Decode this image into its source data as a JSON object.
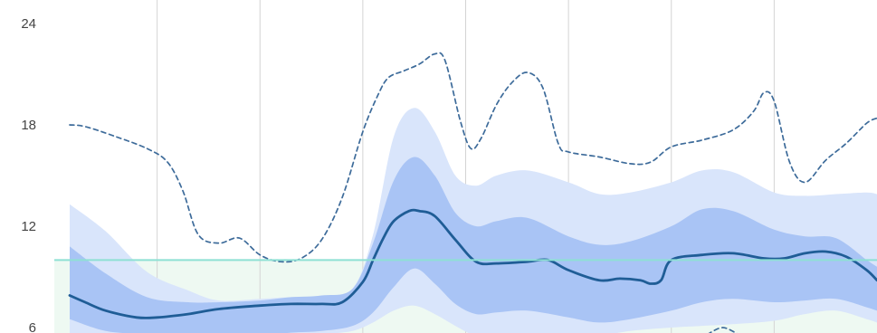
{
  "chart_data": {
    "type": "area",
    "title": "",
    "xlabel": "",
    "ylabel": "",
    "ylim": [
      6,
      24.6
    ],
    "xlim": [
      0,
      8
    ],
    "y_ticks": [
      "6",
      "12",
      "18",
      "24"
    ],
    "x_ticks": [],
    "grid": {
      "vertical": true,
      "horizontal": false
    },
    "target_line": {
      "y": 10.0,
      "color": "#8ee0d4"
    },
    "target_fill_color": "#eef9f2",
    "colors": {
      "outer_band": "#d9e5fb",
      "inner_band": "#a9c4f5",
      "median": "#1f5d96",
      "upper_dashed": "#3d6b9a",
      "grid": "#d4d4d4"
    },
    "series": [
      {
        "key": "outer_band",
        "style": "band",
        "x": [
          0.15,
          0.5,
          0.9,
          1.3,
          1.6,
          2.0,
          2.3,
          2.6,
          2.9,
          3.1,
          3.3,
          3.5,
          3.7,
          3.9,
          4.1,
          4.3,
          4.6,
          5.0,
          5.3,
          5.6,
          6.0,
          6.3,
          6.6,
          7.0,
          7.3,
          7.6,
          7.9,
          8.0
        ],
        "upper": [
          13.3,
          11.7,
          9.3,
          8.2,
          7.6,
          7.7,
          7.8,
          7.8,
          8.3,
          11.5,
          17.3,
          19.0,
          17.6,
          15.0,
          14.4,
          15.0,
          15.3,
          14.6,
          13.9,
          14.0,
          14.6,
          15.3,
          15.2,
          14.0,
          13.8,
          13.9,
          14.0,
          13.9
        ],
        "lower": [
          5.6,
          5.3,
          5.2,
          5.2,
          5.2,
          5.3,
          5.5,
          5.6,
          5.8,
          6.3,
          7.0,
          7.3,
          6.8,
          6.1,
          5.5,
          5.4,
          5.3,
          5.4,
          5.5,
          5.8,
          6.0,
          6.1,
          6.2,
          6.4,
          6.8,
          7.0,
          6.5,
          6.3
        ]
      },
      {
        "key": "inner_band",
        "style": "band",
        "x": [
          0.15,
          0.5,
          0.9,
          1.3,
          1.6,
          2.0,
          2.3,
          2.6,
          2.9,
          3.1,
          3.3,
          3.5,
          3.7,
          3.9,
          4.1,
          4.3,
          4.6,
          5.0,
          5.3,
          5.6,
          6.0,
          6.3,
          6.6,
          7.0,
          7.3,
          7.6,
          7.9,
          8.0
        ],
        "upper": [
          10.8,
          9.2,
          7.8,
          7.5,
          7.5,
          7.6,
          7.8,
          7.9,
          8.3,
          11.0,
          14.7,
          16.1,
          15.0,
          12.8,
          12.0,
          12.3,
          12.5,
          11.4,
          10.9,
          11.1,
          12.0,
          13.0,
          12.9,
          11.8,
          11.4,
          11.3,
          10.0,
          9.6
        ],
        "lower": [
          6.5,
          5.8,
          5.6,
          5.5,
          5.4,
          5.5,
          5.7,
          5.8,
          6.1,
          6.9,
          8.4,
          9.5,
          8.6,
          7.4,
          6.8,
          6.9,
          7.0,
          6.6,
          6.3,
          6.5,
          7.0,
          7.5,
          7.7,
          7.5,
          7.6,
          7.7,
          7.2,
          7.0
        ]
      },
      {
        "key": "median",
        "style": "line",
        "x": [
          0.15,
          0.3,
          0.5,
          0.8,
          1.0,
          1.3,
          1.6,
          2.0,
          2.3,
          2.6,
          2.8,
          3.0,
          3.1,
          3.2,
          3.3,
          3.45,
          3.55,
          3.7,
          3.9,
          4.1,
          4.3,
          4.6,
          4.8,
          5.0,
          5.3,
          5.5,
          5.7,
          5.8,
          5.9,
          6.0,
          6.3,
          6.6,
          6.9,
          7.1,
          7.3,
          7.5,
          7.7,
          7.9,
          8.0
        ],
        "y": [
          7.9,
          7.5,
          7.0,
          6.6,
          6.6,
          6.8,
          7.1,
          7.3,
          7.4,
          7.4,
          7.5,
          8.7,
          10.0,
          11.3,
          12.3,
          12.9,
          12.9,
          12.6,
          11.2,
          9.9,
          9.8,
          9.9,
          10.0,
          9.4,
          8.8,
          8.9,
          8.8,
          8.6,
          8.8,
          10.0,
          10.3,
          10.4,
          10.1,
          10.1,
          10.4,
          10.5,
          10.2,
          9.4,
          8.8
        ]
      },
      {
        "key": "upper_dashed",
        "style": "dashed",
        "x": [
          0.15,
          0.3,
          0.6,
          0.9,
          1.1,
          1.25,
          1.4,
          1.6,
          1.8,
          2.0,
          2.2,
          2.4,
          2.6,
          2.8,
          3.0,
          3.15,
          3.25,
          3.4,
          3.55,
          3.7,
          3.8,
          3.95,
          4.05,
          4.15,
          4.3,
          4.45,
          4.6,
          4.75,
          4.9,
          5.0,
          5.3,
          5.6,
          5.8,
          6.0,
          6.3,
          6.6,
          6.8,
          6.9,
          7.0,
          7.15,
          7.3,
          7.5,
          7.7,
          7.9,
          8.0
        ],
        "y": [
          18.0,
          17.9,
          17.3,
          16.6,
          15.8,
          14.1,
          11.5,
          11.0,
          11.3,
          10.3,
          9.9,
          10.1,
          11.2,
          13.7,
          17.6,
          19.8,
          20.8,
          21.2,
          21.6,
          22.2,
          21.8,
          18.2,
          16.6,
          17.2,
          19.2,
          20.5,
          21.1,
          20.2,
          16.9,
          16.4,
          16.1,
          15.7,
          15.8,
          16.7,
          17.1,
          17.7,
          18.8,
          19.9,
          19.4,
          15.8,
          14.6,
          15.9,
          16.9,
          18.1,
          18.4
        ]
      },
      {
        "key": "bottom_bump",
        "style": "dashed",
        "x": [
          6.35,
          6.5,
          6.65
        ],
        "y": [
          5.6,
          6.0,
          5.6
        ]
      }
    ]
  }
}
